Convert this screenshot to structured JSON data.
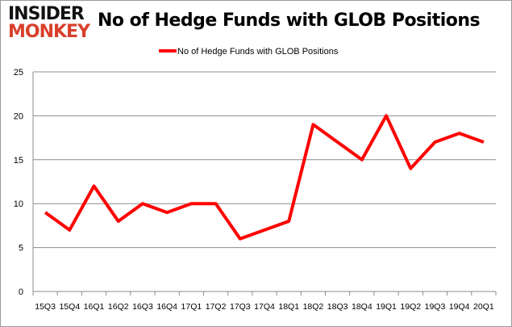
{
  "logo": {
    "line1": "INSIDER",
    "line2": "MONKEY"
  },
  "chart_data": {
    "type": "line",
    "title": "No of Hedge Funds with GLOB Positions",
    "xlabel": "",
    "ylabel": "",
    "categories": [
      "15Q3",
      "15Q4",
      "16Q1",
      "16Q2",
      "16Q3",
      "16Q4",
      "17Q1",
      "17Q2",
      "17Q3",
      "17Q4",
      "18Q1",
      "18Q2",
      "18Q3",
      "18Q4",
      "19Q1",
      "19Q2",
      "19Q3",
      "19Q4",
      "20Q1"
    ],
    "series": [
      {
        "name": "No of Hedge Funds with GLOB Positions",
        "color": "#ff0000",
        "values": [
          9,
          7,
          12,
          8,
          10,
          9,
          10,
          10,
          6,
          7,
          8,
          19,
          17,
          15,
          20,
          14,
          17,
          18,
          17
        ]
      }
    ],
    "ylim": [
      0,
      25
    ],
    "yticks": [
      0,
      5,
      10,
      15,
      20,
      25
    ],
    "grid": true,
    "legend": "top"
  }
}
